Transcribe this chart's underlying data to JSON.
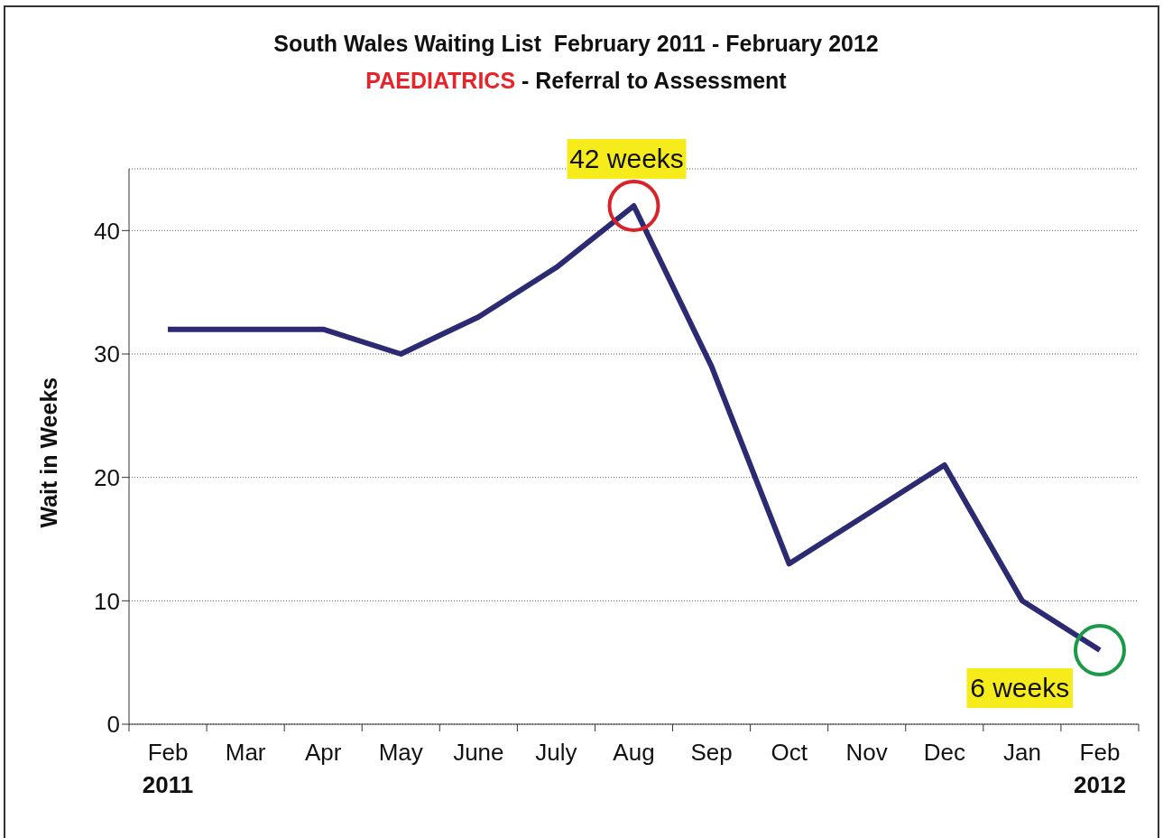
{
  "chart_data": {
    "type": "line",
    "title": "South Wales Waiting List  February 2011 - February 2012",
    "subtitle": "PAEDIATRICS - Referral to Assessment",
    "ylabel": "Wait in Weeks",
    "categories": [
      "Feb 2011",
      "Mar",
      "Apr",
      "May",
      "June",
      "July",
      "Aug",
      "Sep",
      "Oct",
      "Nov",
      "Dec",
      "Jan",
      "Feb 2012"
    ],
    "series": [
      {
        "color": "#2b2a72",
        "values": [
          32,
          32,
          32,
          30,
          33,
          37,
          42,
          29,
          13,
          17,
          21,
          10,
          6
        ]
      }
    ],
    "ylim": [
      0,
      45
    ],
    "yticks": [
      0,
      10,
      20,
      30,
      40
    ],
    "grid": "y",
    "legend": false,
    "marker": "none",
    "line_style": "solid",
    "annotations": [
      {
        "text": "42 weeks",
        "x": "Aug",
        "y": 42
      },
      {
        "text": "6 weeks",
        "x": "Feb 2012",
        "y": 6
      }
    ]
  }
}
